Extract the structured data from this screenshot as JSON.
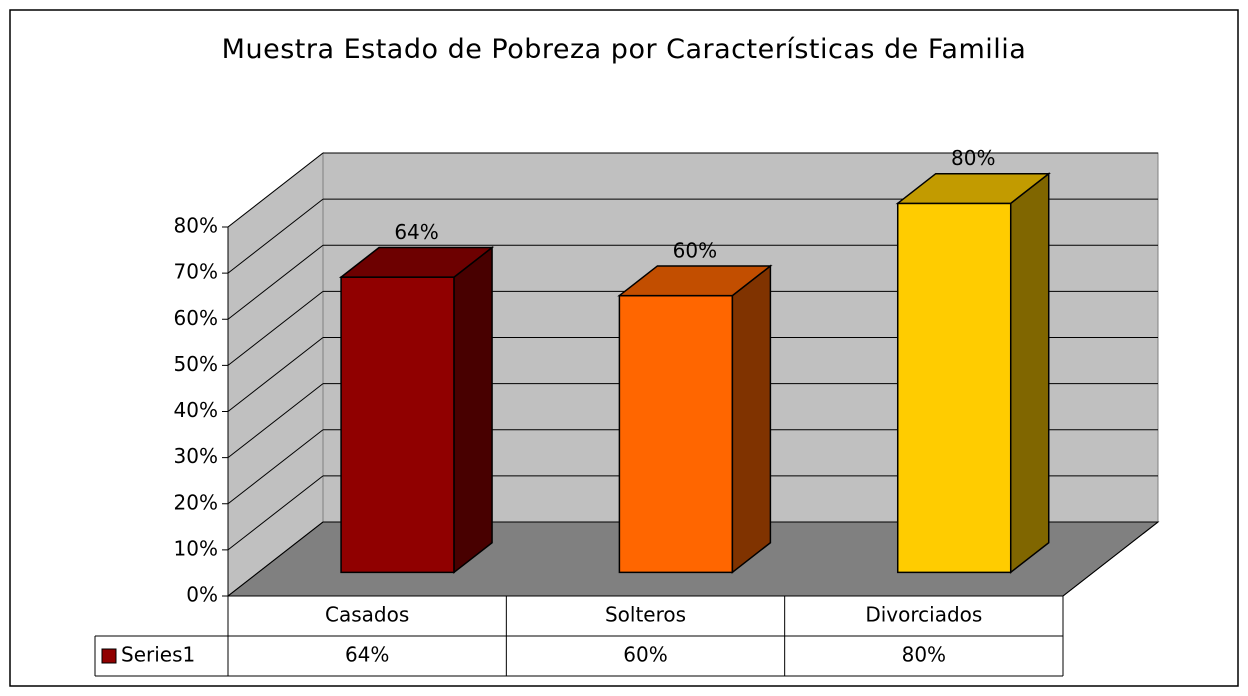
{
  "chart_data": {
    "type": "bar3d",
    "title": "Muestra Estado de Pobreza por Características de Familia",
    "categories": [
      "Casados",
      "Solteros",
      "Divorciados"
    ],
    "series": [
      {
        "name": "Series1",
        "color": "#900000",
        "colors": [
          "#900000",
          "#ff6600",
          "#ffcc00"
        ],
        "values": [
          64,
          60,
          80
        ],
        "value_labels": [
          "64%",
          "60%",
          "80%"
        ]
      }
    ],
    "ylim": [
      0,
      80
    ],
    "yticks": [
      {
        "value": 0,
        "label": "0%"
      },
      {
        "value": 10,
        "label": "10%"
      },
      {
        "value": 20,
        "label": "20%"
      },
      {
        "value": 30,
        "label": "30%"
      },
      {
        "value": 40,
        "label": "40%"
      },
      {
        "value": 50,
        "label": "50%"
      },
      {
        "value": 60,
        "label": "60%"
      },
      {
        "value": 70,
        "label": "70%"
      },
      {
        "value": 80,
        "label": "80%"
      }
    ],
    "grid": true,
    "data_table": true
  }
}
